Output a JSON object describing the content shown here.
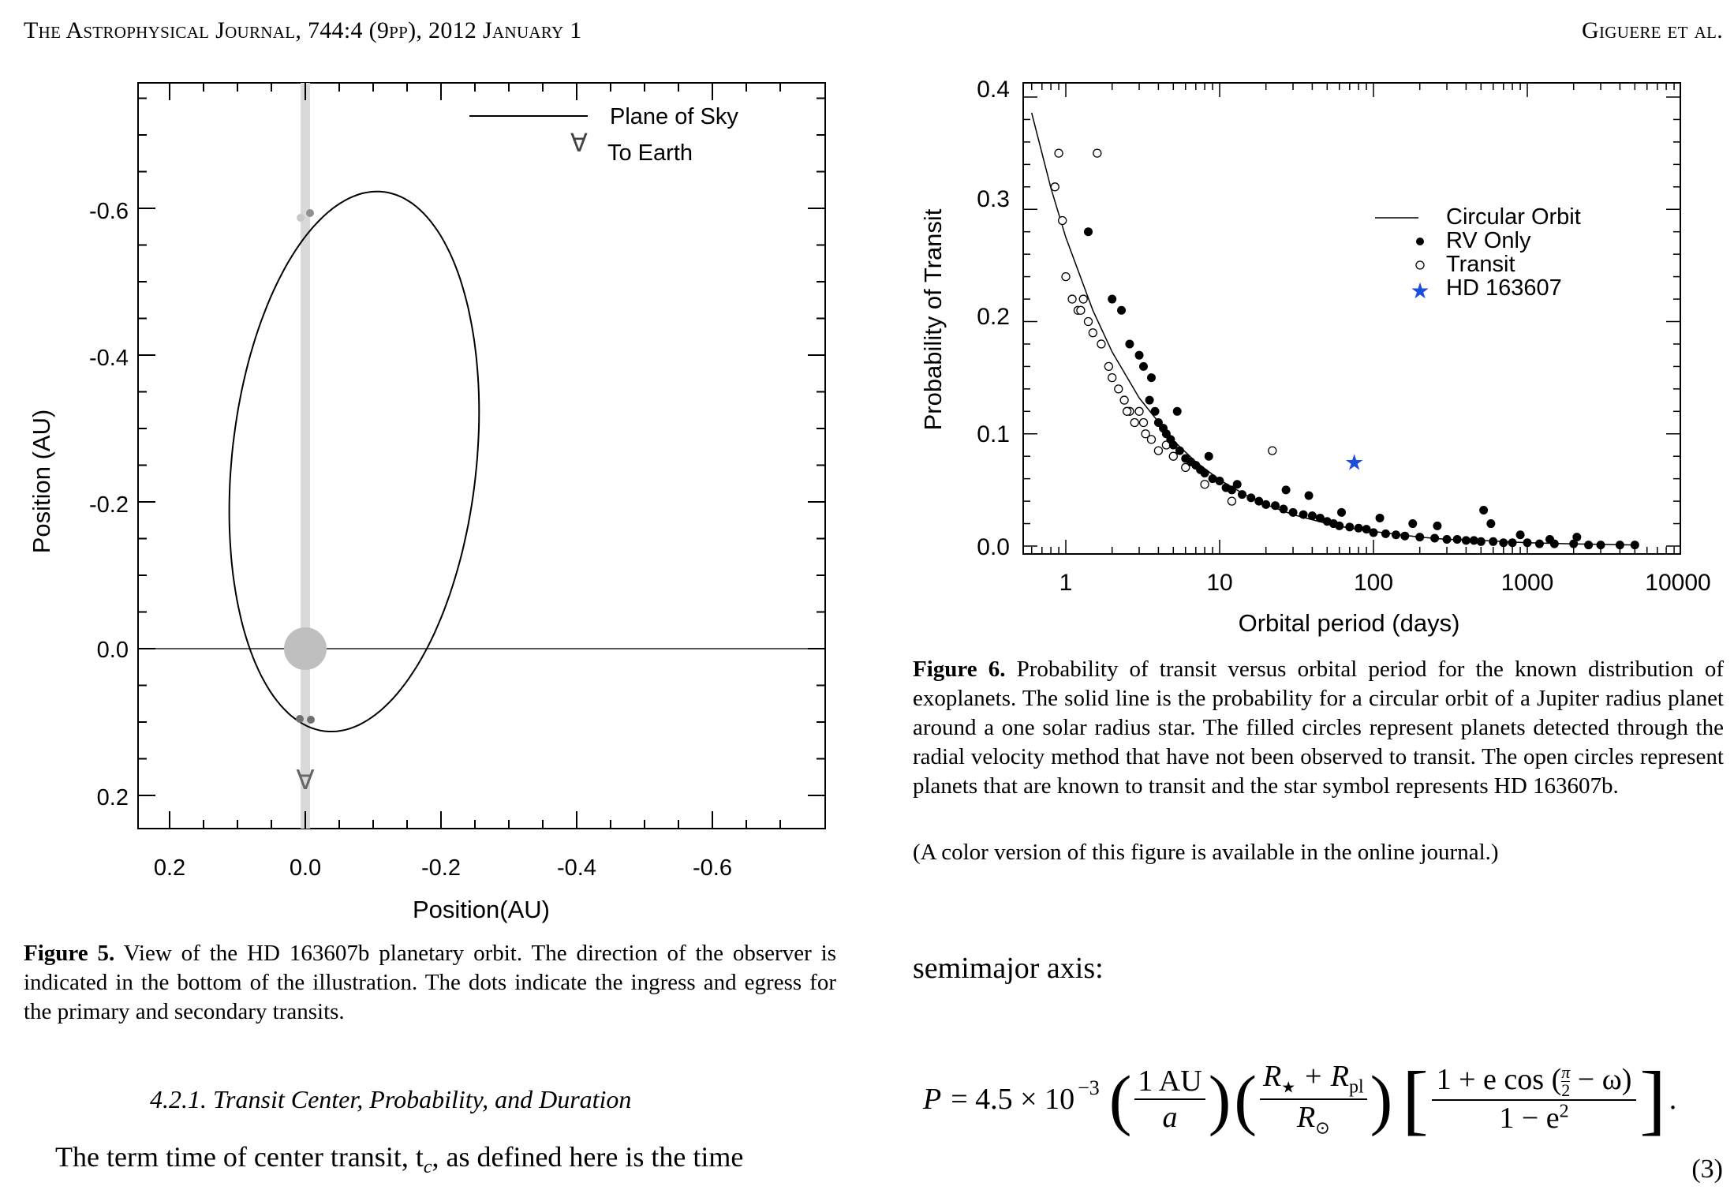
{
  "header": {
    "left": "The Astrophysical Journal, 744:4 (9pp), 2012 January 1",
    "right": "Giguere et al."
  },
  "figure5": {
    "chart_data": {
      "type": "diagram",
      "xlabel": "Position(AU)",
      "ylabel": "Position (AU)",
      "x_ticks": [
        "0.2",
        "0.0",
        "-0.2",
        "-0.4",
        "-0.6"
      ],
      "y_ticks": [
        "-0.6",
        "-0.4",
        "-0.2",
        "0.0",
        "0.2"
      ],
      "xlim": [
        0.2,
        -0.8
      ],
      "ylim": [
        0.25,
        -0.77
      ],
      "legend": [
        {
          "symbol": "line",
          "label": "Plane of Sky"
        },
        {
          "symbol": "∀",
          "label": "To Earth"
        }
      ],
      "earth_marker": "∀",
      "colors": {
        "orbit": "#000000",
        "sightline": "#d9d9d9",
        "star": "#bfbfbf",
        "dots": "#707070"
      }
    },
    "caption_label": "Figure 5.",
    "caption_text": " View of the HD 163607b planetary orbit. The direction of the observer is indicated in the bottom of the illustration. The dots indicate the ingress and egress for the primary and secondary transits."
  },
  "figure6": {
    "chart_data": {
      "type": "scatter",
      "x_scale": "log",
      "xlabel": "Orbital period (days)",
      "ylabel": "Probability of Transit",
      "xlim": [
        0.55,
        7000
      ],
      "ylim": [
        0.0,
        0.41
      ],
      "x_ticks": [
        "1",
        "10",
        "100",
        "1000",
        "10000"
      ],
      "y_ticks": [
        "0.0",
        "0.1",
        "0.2",
        "0.3",
        "0.4"
      ],
      "legend_position": "right",
      "series": [
        {
          "name": "Circular Orbit",
          "kind": "line",
          "x": [
            0.6,
            0.8,
            1,
            1.5,
            2,
            3,
            5,
            7,
            10,
            15,
            20,
            30,
            50,
            70,
            100,
            200,
            300,
            500,
            1000,
            2000,
            5000
          ],
          "y": [
            0.386,
            0.319,
            0.275,
            0.21,
            0.173,
            0.132,
            0.094,
            0.075,
            0.059,
            0.045,
            0.037,
            0.028,
            0.02,
            0.016,
            0.013,
            0.008,
            0.006,
            0.005,
            0.003,
            0.002,
            0.001
          ]
        },
        {
          "name": "RV Only",
          "kind": "filled",
          "x": [
            1.4,
            2.0,
            2.3,
            2.6,
            3.0,
            3.2,
            3.5,
            3.8,
            4.0,
            4.3,
            4.5,
            4.8,
            5.0,
            5.5,
            6.0,
            6.5,
            7.0,
            7.5,
            8.0,
            9.0,
            10,
            11,
            12,
            14,
            16,
            18,
            20,
            23,
            26,
            30,
            35,
            40,
            45,
            50,
            55,
            60,
            70,
            80,
            90,
            100,
            120,
            140,
            160,
            200,
            250,
            300,
            350,
            400,
            450,
            500,
            600,
            700,
            800,
            1000,
            1200,
            1500,
            2000,
            2500,
            3000,
            4000,
            5000,
            3.6,
            5.3,
            8.5,
            13,
            27,
            38,
            62,
            110,
            180,
            260,
            520,
            580,
            2100,
            900,
            1400
          ],
          "y": [
            0.28,
            0.22,
            0.21,
            0.18,
            0.17,
            0.16,
            0.13,
            0.12,
            0.11,
            0.105,
            0.1,
            0.095,
            0.09,
            0.085,
            0.078,
            0.075,
            0.072,
            0.068,
            0.065,
            0.06,
            0.058,
            0.052,
            0.05,
            0.046,
            0.043,
            0.04,
            0.037,
            0.036,
            0.033,
            0.03,
            0.028,
            0.027,
            0.025,
            0.022,
            0.02,
            0.018,
            0.017,
            0.016,
            0.015,
            0.012,
            0.011,
            0.01,
            0.009,
            0.008,
            0.007,
            0.006,
            0.006,
            0.005,
            0.005,
            0.004,
            0.004,
            0.003,
            0.003,
            0.003,
            0.002,
            0.002,
            0.002,
            0.001,
            0.001,
            0.001,
            0.001,
            0.15,
            0.12,
            0.08,
            0.055,
            0.05,
            0.045,
            0.03,
            0.025,
            0.02,
            0.018,
            0.032,
            0.02,
            0.008,
            0.01,
            0.006
          ]
        },
        {
          "name": "Transit",
          "kind": "open",
          "x": [
            0.9,
            1.6,
            0.95,
            0.85,
            1.0,
            1.1,
            1.2,
            1.3,
            1.5,
            1.7,
            1.9,
            2.0,
            2.2,
            2.4,
            2.6,
            2.8,
            3.0,
            3.3,
            3.6,
            4.0,
            4.5,
            5.0,
            6.0,
            8.0,
            12,
            22,
            1.25,
            1.4,
            2.5,
            3.2
          ],
          "y": [
            0.35,
            0.35,
            0.29,
            0.32,
            0.24,
            0.22,
            0.21,
            0.22,
            0.19,
            0.18,
            0.16,
            0.15,
            0.14,
            0.13,
            0.12,
            0.11,
            0.12,
            0.1,
            0.095,
            0.085,
            0.09,
            0.08,
            0.07,
            0.055,
            0.04,
            0.085,
            0.21,
            0.2,
            0.12,
            0.11
          ]
        },
        {
          "name": "HD 163607",
          "kind": "star",
          "x": [
            75
          ],
          "y": [
            0.075
          ]
        }
      ],
      "colors": {
        "filled": "#000000",
        "open": "#000000",
        "star": "#1a4fdc",
        "line": "#000000"
      }
    },
    "caption_label": "Figure 6.",
    "caption_text": " Probability of transit versus orbital period for the known distribution of exoplanets. The solid line is the probability for a circular orbit of a Jupiter radius planet around a one solar radius star. The filled circles represent planets detected through the radial velocity method that have not been observed to transit. The open circles represent planets that are known to transit and the star symbol represents HD 163607b.",
    "color_note": "(A color version of this figure is available in the online journal.)"
  },
  "section": {
    "title": "4.2.1. Transit Center, Probability, and Duration",
    "body_start": "The term time of center transit, t",
    "body_sub": "c",
    "body_end": ", as defined here is the time"
  },
  "right_text": {
    "semimajor": "semimajor axis:",
    "equation_number": "(3)",
    "equation": {
      "lhs": "P = 4.5 × 10",
      "exponent": "−3",
      "frac1_num": "1 AU",
      "frac1_den": "a",
      "frac2_num_a": "R",
      "frac2_num_a_sub": "★",
      "frac2_num_plus": " + R",
      "frac2_num_b_sub": "pl",
      "frac2_den": "R",
      "frac2_den_sub": "⊙",
      "frac3_num_start": "1 + e cos (",
      "frac3_pi": "π",
      "frac3_two": "2",
      "frac3_num_end": " − ω)",
      "frac3_den": "1 − e",
      "frac3_den_exp": "2",
      "trailing": "."
    }
  }
}
